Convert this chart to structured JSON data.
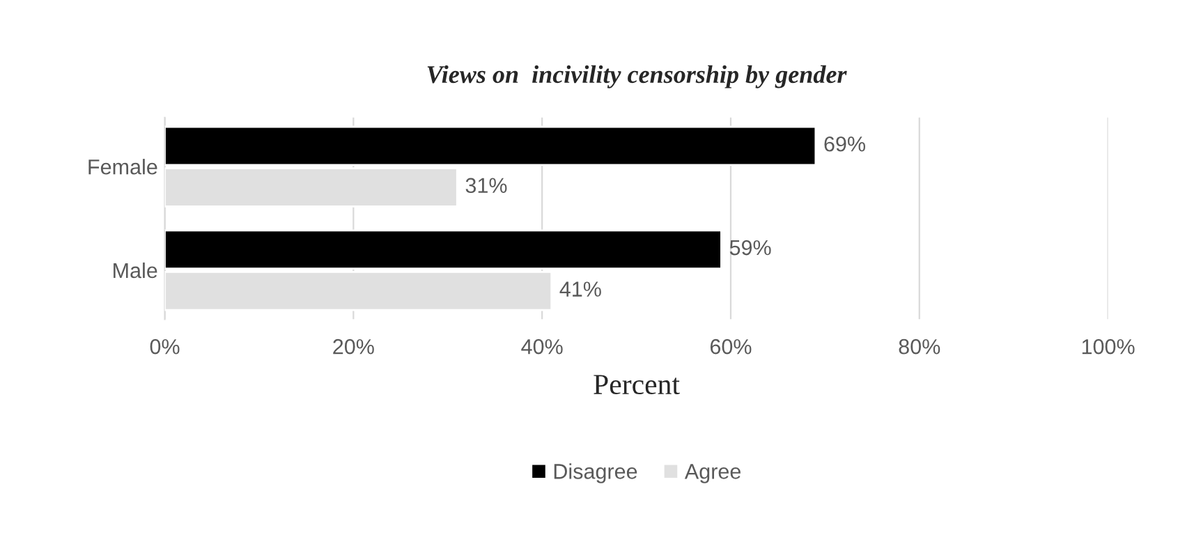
{
  "chart_data": {
    "type": "bar",
    "orientation": "horizontal",
    "title": "Views on  incivility censorship by gender",
    "xlabel": "Percent",
    "categories": [
      "Female",
      "Male"
    ],
    "series": [
      {
        "name": "Disagree",
        "color": "#000000",
        "values": [
          69,
          59
        ],
        "value_labels": [
          "69%",
          "59%"
        ]
      },
      {
        "name": "Agree",
        "color": "#e0e0e0",
        "values": [
          31,
          41
        ],
        "value_labels": [
          "31%",
          "41%"
        ]
      }
    ],
    "xlim": [
      0,
      100
    ],
    "xticks": [
      {
        "value": 0,
        "label": "0%"
      },
      {
        "value": 20,
        "label": "20%"
      },
      {
        "value": 40,
        "label": "40%"
      },
      {
        "value": 60,
        "label": "60%"
      },
      {
        "value": 80,
        "label": "80%"
      },
      {
        "value": 100,
        "label": "100%"
      }
    ],
    "grid": "x",
    "legend": "bottom"
  }
}
